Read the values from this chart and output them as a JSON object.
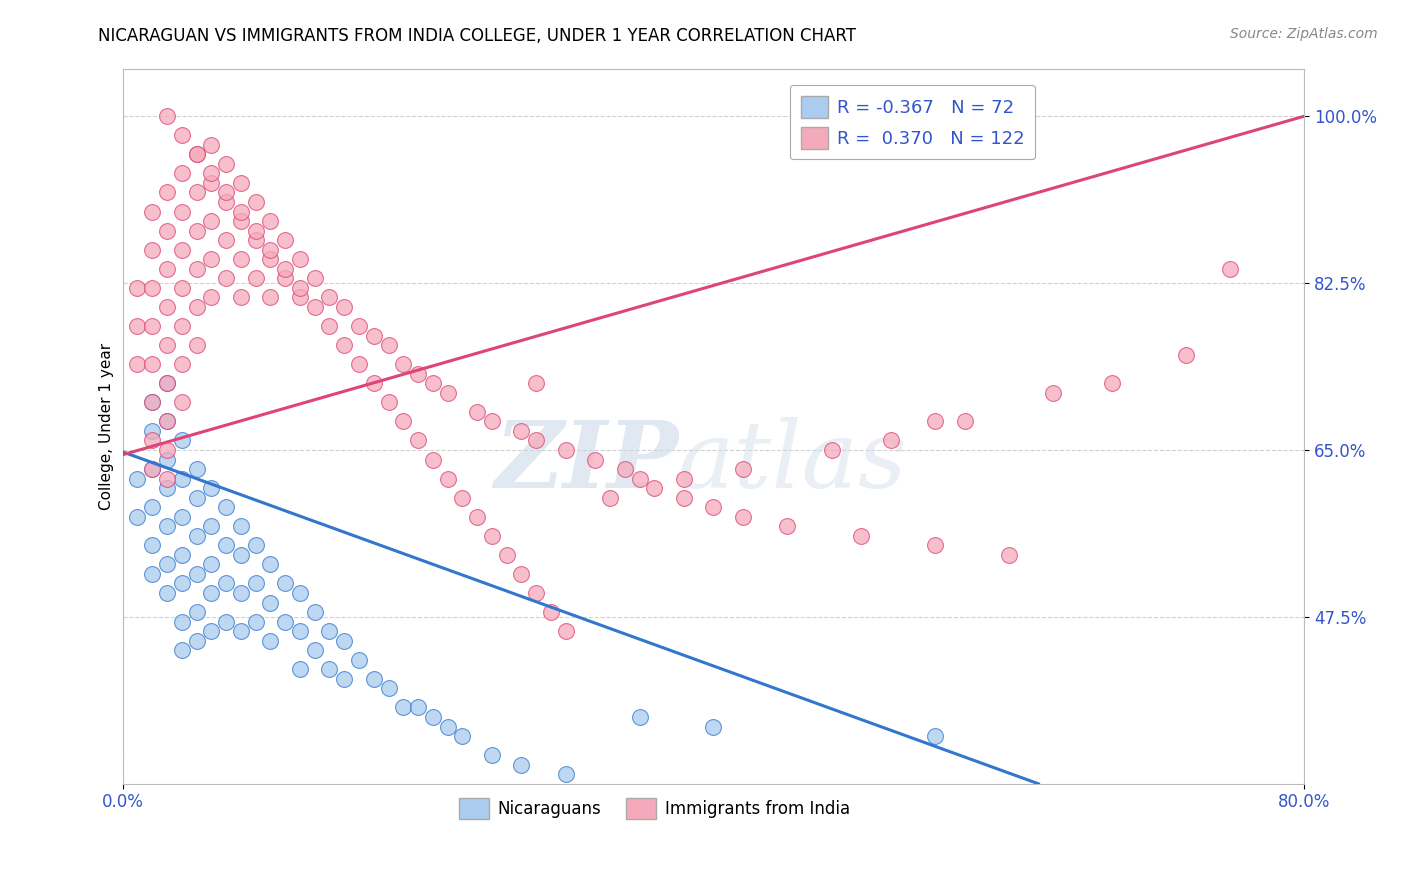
{
  "title": "NICARAGUAN VS IMMIGRANTS FROM INDIA COLLEGE, UNDER 1 YEAR CORRELATION CHART",
  "source": "Source: ZipAtlas.com",
  "ylabel": "College, Under 1 year",
  "xlim": [
    0.0,
    0.8
  ],
  "ylim": [
    0.3,
    1.05
  ],
  "xtick_vals": [
    0.0,
    0.8
  ],
  "xtick_labels": [
    "0.0%",
    "80.0%"
  ],
  "ytick_positions": [
    0.475,
    0.65,
    0.825,
    1.0
  ],
  "ytick_labels": [
    "47.5%",
    "65.0%",
    "82.5%",
    "100.0%"
  ],
  "legend_R1": "-0.367",
  "legend_N1": "72",
  "legend_R2": "0.370",
  "legend_N2": "122",
  "color_blue": "#aaccee",
  "color_pink": "#f5aabb",
  "line_color_blue": "#3377cc",
  "line_color_pink": "#dd4477",
  "watermark_zip": "ZIP",
  "watermark_atlas": "atlas",
  "blue_scatter_x": [
    0.01,
    0.01,
    0.02,
    0.02,
    0.02,
    0.02,
    0.02,
    0.03,
    0.03,
    0.03,
    0.03,
    0.03,
    0.03,
    0.04,
    0.04,
    0.04,
    0.04,
    0.04,
    0.04,
    0.04,
    0.05,
    0.05,
    0.05,
    0.05,
    0.05,
    0.05,
    0.06,
    0.06,
    0.06,
    0.06,
    0.06,
    0.07,
    0.07,
    0.07,
    0.07,
    0.08,
    0.08,
    0.08,
    0.08,
    0.09,
    0.09,
    0.09,
    0.1,
    0.1,
    0.1,
    0.11,
    0.11,
    0.12,
    0.12,
    0.12,
    0.13,
    0.13,
    0.14,
    0.14,
    0.15,
    0.15,
    0.16,
    0.17,
    0.18,
    0.19,
    0.2,
    0.21,
    0.22,
    0.23,
    0.25,
    0.27,
    0.3,
    0.35,
    0.4,
    0.55,
    0.02,
    0.03
  ],
  "blue_scatter_y": [
    0.62,
    0.58,
    0.67,
    0.63,
    0.59,
    0.55,
    0.52,
    0.68,
    0.64,
    0.61,
    0.57,
    0.53,
    0.5,
    0.66,
    0.62,
    0.58,
    0.54,
    0.51,
    0.47,
    0.44,
    0.63,
    0.6,
    0.56,
    0.52,
    0.48,
    0.45,
    0.61,
    0.57,
    0.53,
    0.5,
    0.46,
    0.59,
    0.55,
    0.51,
    0.47,
    0.57,
    0.54,
    0.5,
    0.46,
    0.55,
    0.51,
    0.47,
    0.53,
    0.49,
    0.45,
    0.51,
    0.47,
    0.5,
    0.46,
    0.42,
    0.48,
    0.44,
    0.46,
    0.42,
    0.45,
    0.41,
    0.43,
    0.41,
    0.4,
    0.38,
    0.38,
    0.37,
    0.36,
    0.35,
    0.33,
    0.32,
    0.31,
    0.37,
    0.36,
    0.35,
    0.7,
    0.72
  ],
  "pink_scatter_x": [
    0.01,
    0.01,
    0.01,
    0.02,
    0.02,
    0.02,
    0.02,
    0.02,
    0.02,
    0.02,
    0.02,
    0.03,
    0.03,
    0.03,
    0.03,
    0.03,
    0.03,
    0.03,
    0.03,
    0.03,
    0.04,
    0.04,
    0.04,
    0.04,
    0.04,
    0.04,
    0.04,
    0.05,
    0.05,
    0.05,
    0.05,
    0.05,
    0.05,
    0.06,
    0.06,
    0.06,
    0.06,
    0.06,
    0.07,
    0.07,
    0.07,
    0.07,
    0.08,
    0.08,
    0.08,
    0.08,
    0.09,
    0.09,
    0.09,
    0.1,
    0.1,
    0.1,
    0.11,
    0.11,
    0.12,
    0.12,
    0.13,
    0.14,
    0.15,
    0.16,
    0.17,
    0.18,
    0.19,
    0.2,
    0.21,
    0.22,
    0.24,
    0.25,
    0.27,
    0.28,
    0.3,
    0.32,
    0.34,
    0.35,
    0.36,
    0.38,
    0.4,
    0.42,
    0.45,
    0.5,
    0.55,
    0.6,
    0.28,
    0.04,
    0.05,
    0.06,
    0.07,
    0.08,
    0.09,
    0.1,
    0.11,
    0.12,
    0.13,
    0.14,
    0.15,
    0.16,
    0.17,
    0.18,
    0.19,
    0.2,
    0.21,
    0.22,
    0.23,
    0.24,
    0.25,
    0.26,
    0.27,
    0.28,
    0.29,
    0.3,
    0.75,
    0.55,
    0.63,
    0.48,
    0.38,
    0.33,
    0.42,
    0.52,
    0.57,
    0.67,
    0.72,
    0.03
  ],
  "pink_scatter_y": [
    0.82,
    0.78,
    0.74,
    0.9,
    0.86,
    0.82,
    0.78,
    0.74,
    0.7,
    0.66,
    0.63,
    0.92,
    0.88,
    0.84,
    0.8,
    0.76,
    0.72,
    0.68,
    0.65,
    0.62,
    0.94,
    0.9,
    0.86,
    0.82,
    0.78,
    0.74,
    0.7,
    0.96,
    0.92,
    0.88,
    0.84,
    0.8,
    0.76,
    0.97,
    0.93,
    0.89,
    0.85,
    0.81,
    0.95,
    0.91,
    0.87,
    0.83,
    0.93,
    0.89,
    0.85,
    0.81,
    0.91,
    0.87,
    0.83,
    0.89,
    0.85,
    0.81,
    0.87,
    0.83,
    0.85,
    0.81,
    0.83,
    0.81,
    0.8,
    0.78,
    0.77,
    0.76,
    0.74,
    0.73,
    0.72,
    0.71,
    0.69,
    0.68,
    0.67,
    0.66,
    0.65,
    0.64,
    0.63,
    0.62,
    0.61,
    0.6,
    0.59,
    0.58,
    0.57,
    0.56,
    0.55,
    0.54,
    0.72,
    0.98,
    0.96,
    0.94,
    0.92,
    0.9,
    0.88,
    0.86,
    0.84,
    0.82,
    0.8,
    0.78,
    0.76,
    0.74,
    0.72,
    0.7,
    0.68,
    0.66,
    0.64,
    0.62,
    0.6,
    0.58,
    0.56,
    0.54,
    0.52,
    0.5,
    0.48,
    0.46,
    0.84,
    0.68,
    0.71,
    0.65,
    0.62,
    0.6,
    0.63,
    0.66,
    0.68,
    0.72,
    0.75,
    1.0
  ],
  "blue_line_x": [
    0.0,
    0.62
  ],
  "blue_line_y": [
    0.648,
    0.3
  ],
  "pink_line_x": [
    0.0,
    0.8
  ],
  "pink_line_y": [
    0.645,
    1.0
  ],
  "background_color": "#ffffff",
  "grid_color": "#cccccc",
  "tick_color": "#3355cc",
  "legend_text_color": "#3355cc"
}
